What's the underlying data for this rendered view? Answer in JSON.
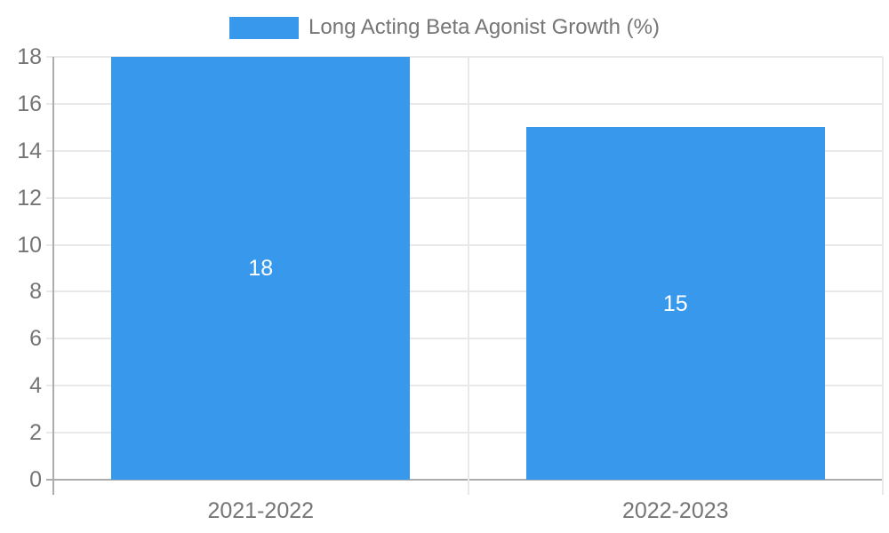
{
  "legend": {
    "label": "Long Acting Beta Agonist Growth (%)"
  },
  "chart_data": {
    "type": "bar",
    "title": "Long Acting Beta Agonist Growth (%)",
    "categories": [
      "2021-2022",
      "2022-2023"
    ],
    "values": [
      18,
      15
    ],
    "data_labels": [
      "18",
      "15"
    ],
    "xlabel": "",
    "ylabel": "",
    "ylim": [
      0,
      18
    ],
    "yticks": [
      0,
      2,
      4,
      6,
      8,
      10,
      12,
      14,
      16,
      18
    ],
    "grid": true,
    "legend_position": "top-center",
    "colors": {
      "bar": "#3899EC",
      "bar_label": "#FFFFFF",
      "axis_text": "#757575",
      "axis_line": "#ACACAC",
      "gridline": "#E9E9E9"
    }
  }
}
